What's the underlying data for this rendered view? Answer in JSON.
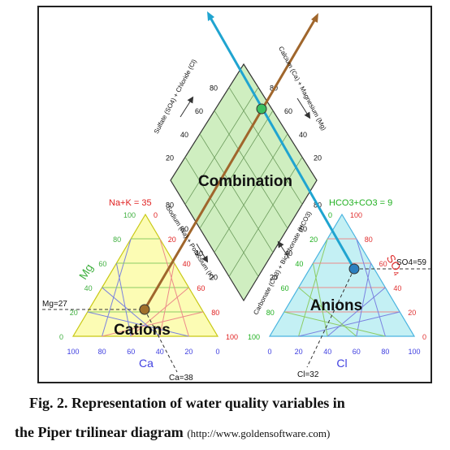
{
  "diagram": {
    "labels": {
      "combination": "Combination",
      "cations": "Cations",
      "anions": "Anions",
      "mg_axis": "Mg",
      "ca_axis": "Ca",
      "cl_axis": "Cl",
      "so4_axis": "SO",
      "so4_sub": "4",
      "na_k": "Na+K = 35",
      "hco3_co3": "HCO3+CO3 = 9",
      "mg_value": "Mg=27",
      "ca_value": "Ca=38",
      "cl_value": "Cl=32",
      "so4_value": "SO4=59",
      "sulfate_chloride": "Sulfate (SO4) + Chloride (Cl)",
      "calcium_magnesium": "Calcium (Ca) + Magnesium (Mg)",
      "sodium_potassium": "Sodium (Na) + Potassium (K)",
      "carbonate_bicarbonate": "Carbonate (CO3) + Bicarbonate (HCO3)"
    },
    "ticks": [
      "0",
      "20",
      "40",
      "60",
      "80",
      "100"
    ],
    "colors": {
      "cation_fill": "#fcfcb4",
      "cation_edge": "#c8c814",
      "anion_fill": "#c4f0f4",
      "anion_edge": "#4ab4e0",
      "diamond_fill": "#cfeec0",
      "grid_green": "#8ccc64",
      "grid_blue": "#7a82e0",
      "grid_red": "#ec8a8a",
      "na_label": "#e02020",
      "hco3_label": "#20b020",
      "mg_label": "#40b040",
      "ca_label": "#4040e0",
      "so4_label": "#e03030",
      "brown_line": "#a0662c",
      "blue_line": "#20a4d0",
      "point_green": "#3cc060",
      "point_brown": "#a0702c",
      "point_blue": "#2c80c0"
    }
  },
  "caption": {
    "line1": "Fig. 2. Representation of water quality variables in",
    "line2": "the Piper trilinear  diagram",
    "url": "(http://www.goldensoftware.com)"
  }
}
